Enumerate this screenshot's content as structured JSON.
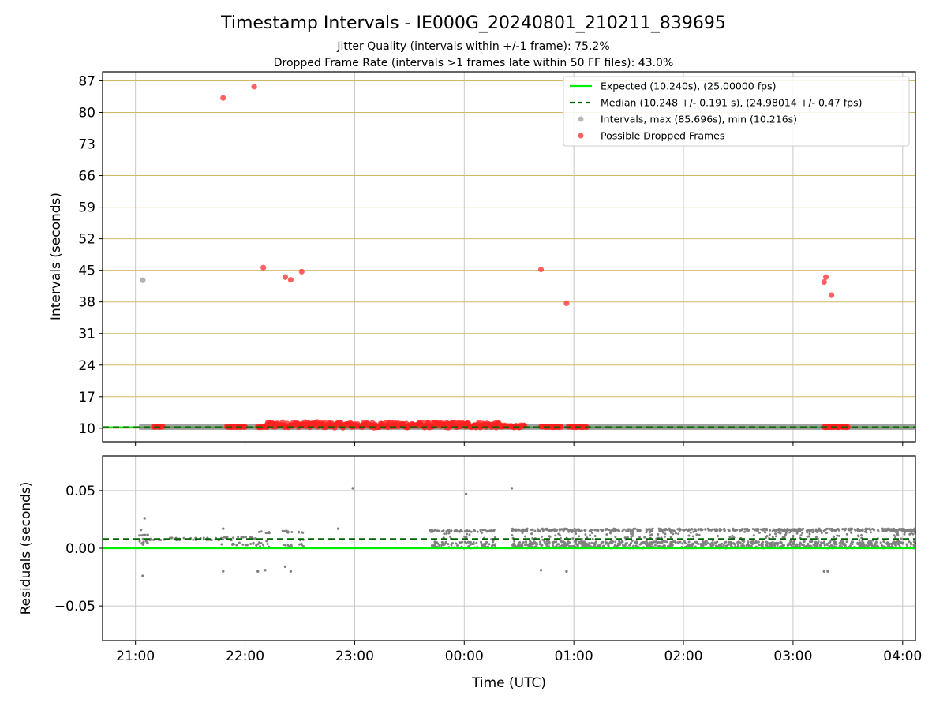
{
  "figure": {
    "title": "Timestamp Intervals - IE000G_20240801_210211_839695",
    "subtitle_line1": "Jitter Quality (intervals within +/-1 frame): 75.2%",
    "subtitle_line2": "Dropped Frame Rate (intervals >1 frames late within 50 FF files): 43.0%"
  },
  "colors": {
    "expected": "#00ee00",
    "median": "#006400",
    "intervals": "#808080",
    "dropped": "#ff2020",
    "hgrid_top": "#d4b86a",
    "grid": "#c8c8c8"
  },
  "chart_data": [
    {
      "type": "scatter",
      "panel": "intervals",
      "xlabel": "",
      "ylabel": "Intervals (seconds)",
      "x_unit": "Time (UTC)",
      "xlim": [
        "20:42",
        "04:07"
      ],
      "ylim": [
        7,
        89
      ],
      "x_ticks": [
        "21:00",
        "22:00",
        "23:00",
        "00:00",
        "01:00",
        "02:00",
        "03:00",
        "04:00"
      ],
      "y_ticks": [
        10,
        17,
        24,
        31,
        38,
        45,
        52,
        59,
        66,
        73,
        80,
        87
      ],
      "grid": "both",
      "legend_position": "top-right",
      "legend": [
        {
          "label": "Expected (10.240s), (25.00000 fps)",
          "style": "solid-line",
          "color_key": "expected"
        },
        {
          "label": "Median (10.248 +/- 0.191 s), (24.98014 +/- 0.47 fps)",
          "style": "dashed-line",
          "color_key": "median"
        },
        {
          "label": "Intervals, max (85.696s), min (10.216s)",
          "style": "dot",
          "color_key": "intervals"
        },
        {
          "label": "Possible Dropped Frames",
          "style": "dot",
          "color_key": "dropped"
        }
      ],
      "expected_line": 10.24,
      "median_line": 10.248,
      "interval_band": {
        "from": "21:02",
        "to": "04:07",
        "value": 10.25
      },
      "interval_outliers": [
        {
          "x": "21:04",
          "y": 42.8
        }
      ],
      "dropped_frames": [
        {
          "x": "21:48",
          "y": 83.2
        },
        {
          "x": "22:05",
          "y": 85.7
        },
        {
          "x": "22:10",
          "y": 45.6
        },
        {
          "x": "22:22",
          "y": 43.5
        },
        {
          "x": "22:25",
          "y": 42.9
        },
        {
          "x": "22:31",
          "y": 44.7
        },
        {
          "x": "00:42",
          "y": 45.2
        },
        {
          "x": "00:56",
          "y": 37.7
        },
        {
          "x": "03:17",
          "y": 42.4
        },
        {
          "x": "03:18",
          "y": 43.5
        },
        {
          "x": "03:21",
          "y": 39.5
        }
      ],
      "dropped_clusters": [
        {
          "from": "21:10",
          "to": "21:15",
          "y": 10.3,
          "spread": 0.1
        },
        {
          "from": "21:50",
          "to": "22:00",
          "y": 10.3,
          "spread": 0.1
        },
        {
          "from": "22:07",
          "to": "22:12",
          "y": 10.3,
          "spread": 0.15
        },
        {
          "from": "22:12",
          "to": "22:40",
          "y": 10.8,
          "spread": 0.6
        },
        {
          "from": "22:40",
          "to": "00:20",
          "y": 10.7,
          "spread": 0.6
        },
        {
          "from": "00:20",
          "to": "00:33",
          "y": 10.4,
          "spread": 0.25
        },
        {
          "from": "00:42",
          "to": "00:53",
          "y": 10.3,
          "spread": 0.1
        },
        {
          "from": "00:57",
          "to": "01:07",
          "y": 10.3,
          "spread": 0.1
        },
        {
          "from": "03:17",
          "to": "03:30",
          "y": 10.3,
          "spread": 0.1
        }
      ]
    },
    {
      "type": "scatter",
      "panel": "residuals",
      "xlabel": "Time (UTC)",
      "ylabel": "Residuals (seconds)",
      "xlim": [
        "20:42",
        "04:07"
      ],
      "ylim": [
        -0.08,
        0.08
      ],
      "x_ticks": [
        "21:00",
        "22:00",
        "23:00",
        "00:00",
        "01:00",
        "02:00",
        "03:00",
        "04:00"
      ],
      "y_ticks": [
        {
          "value": 0.05,
          "label": "0.05"
        },
        {
          "value": 0.0,
          "label": "0.00"
        },
        {
          "value": -0.05,
          "label": "−0.05"
        }
      ],
      "grid": "both",
      "expected_line": 0.0,
      "median_line": 0.008,
      "residual_outliers": [
        {
          "x": "21:03",
          "y": 0.016
        },
        {
          "x": "21:05",
          "y": 0.026
        },
        {
          "x": "21:04",
          "y": -0.024
        },
        {
          "x": "21:48",
          "y": 0.017
        },
        {
          "x": "21:48",
          "y": -0.02
        },
        {
          "x": "22:07",
          "y": -0.02
        },
        {
          "x": "22:11",
          "y": -0.019
        },
        {
          "x": "22:22",
          "y": -0.016
        },
        {
          "x": "22:25",
          "y": -0.02
        },
        {
          "x": "22:51",
          "y": 0.017
        },
        {
          "x": "22:59",
          "y": 0.052
        },
        {
          "x": "00:01",
          "y": 0.047
        },
        {
          "x": "00:26",
          "y": 0.052
        },
        {
          "x": "00:42",
          "y": -0.019
        },
        {
          "x": "00:56",
          "y": -0.02
        },
        {
          "x": "03:17",
          "y": -0.02
        },
        {
          "x": "03:19",
          "y": -0.02
        }
      ],
      "residual_clusters": [
        {
          "from": "21:02",
          "to": "21:07",
          "ymin": 0.003,
          "ymax": 0.012,
          "count": 18
        },
        {
          "from": "21:07",
          "to": "21:48",
          "ymin": 0.007,
          "ymax": 0.009,
          "count": 40
        },
        {
          "from": "21:47",
          "to": "22:06",
          "ymin": 0.002,
          "ymax": 0.01,
          "count": 30
        },
        {
          "from": "22:06",
          "to": "22:14",
          "ymin": 0.0,
          "ymax": 0.015,
          "count": 20
        },
        {
          "from": "22:20",
          "to": "22:26",
          "ymin": 0.0,
          "ymax": 0.015,
          "count": 18
        },
        {
          "from": "22:29",
          "to": "22:33",
          "ymin": 0.0,
          "ymax": 0.015,
          "count": 14
        },
        {
          "from": "23:41",
          "to": "00:18",
          "ymin": 0.0,
          "ymax": 0.016,
          "count": 160
        },
        {
          "from": "00:26",
          "to": "04:07",
          "ymin": 0.0,
          "ymax": 0.017,
          "count": 1400
        }
      ]
    }
  ]
}
